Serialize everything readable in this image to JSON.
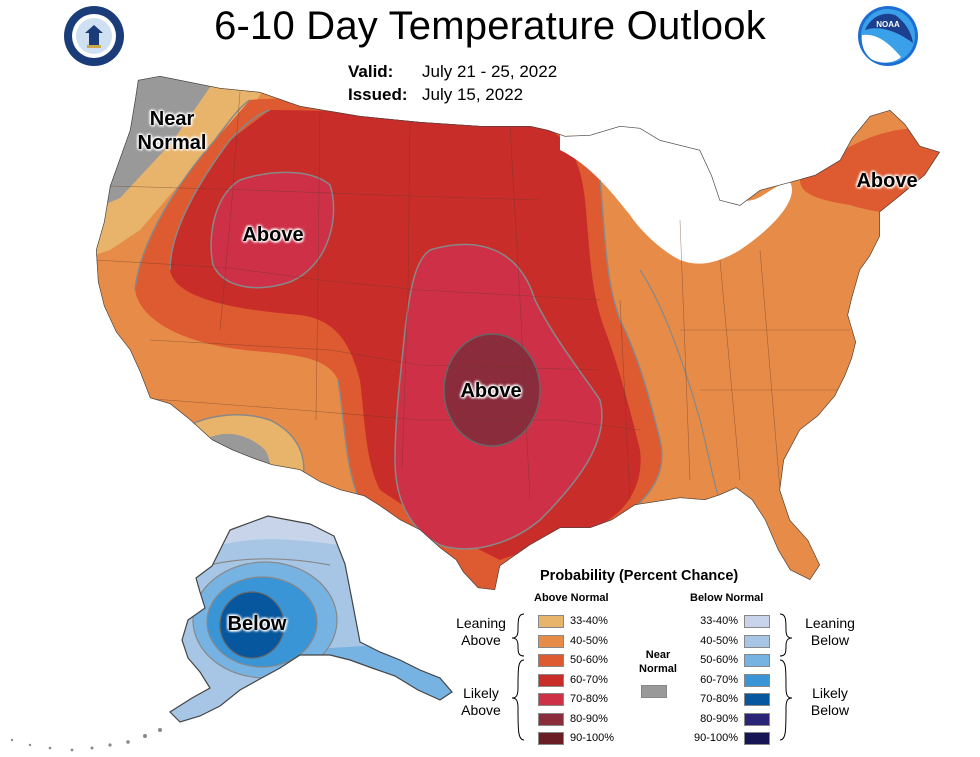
{
  "title": "6-10 Day Temperature Outlook",
  "valid_label": "Valid:",
  "valid_value": "July 21 - 25, 2022",
  "issued_label": "Issued:",
  "issued_value": "July 15, 2022",
  "logos": {
    "left": "doc-seal-icon",
    "right": "noaa-logo-icon"
  },
  "map_labels": {
    "northwest": "Near Normal",
    "northwest_line1": "Near",
    "northwest_line2": "Normal",
    "rockies": "Above",
    "plains": "Above",
    "northeast": "Above",
    "alaska": "Below"
  },
  "legend": {
    "title": "Probability (Percent Chance)",
    "above_header": "Above Normal",
    "below_header": "Below Normal",
    "near_normal_line1": "Near",
    "near_normal_line2": "Normal",
    "near_normal_color": "#999999",
    "leaning_above_1": "Leaning",
    "leaning_above_2": "Above",
    "likely_above_1": "Likely",
    "likely_above_2": "Above",
    "leaning_below_1": "Leaning",
    "leaning_below_2": "Below",
    "likely_below_1": "Likely",
    "likely_below_2": "Below",
    "above": [
      {
        "label": "33-40%",
        "color": "#E8B46C"
      },
      {
        "label": "40-50%",
        "color": "#E68C48"
      },
      {
        "label": "50-60%",
        "color": "#DE5A30"
      },
      {
        "label": "60-70%",
        "color": "#C82D2A"
      },
      {
        "label": "70-80%",
        "color": "#CE3048"
      },
      {
        "label": "80-90%",
        "color": "#8A2C3C"
      },
      {
        "label": "90-100%",
        "color": "#6A1D24"
      }
    ],
    "below": [
      {
        "label": "33-40%",
        "color": "#C7D4EA"
      },
      {
        "label": "40-50%",
        "color": "#A7C6E6"
      },
      {
        "label": "50-60%",
        "color": "#76B2E2"
      },
      {
        "label": "60-70%",
        "color": "#3A95D6"
      },
      {
        "label": "70-80%",
        "color": "#07579E"
      },
      {
        "label": "80-90%",
        "color": "#2A2476"
      },
      {
        "label": "90-100%",
        "color": "#171553"
      }
    ]
  }
}
